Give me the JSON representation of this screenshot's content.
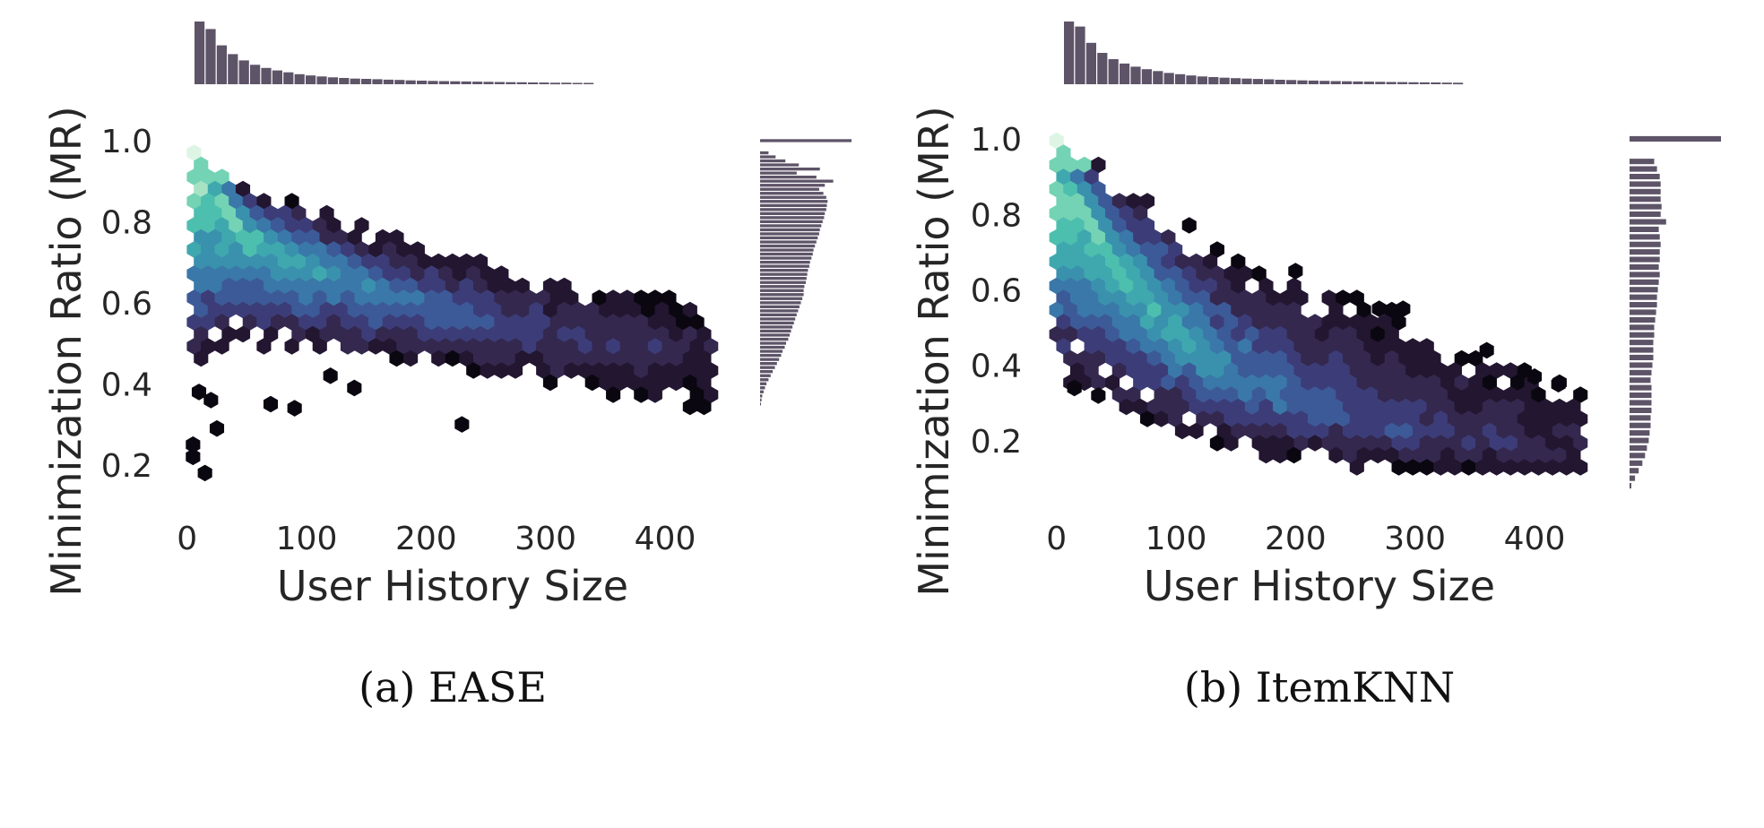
{
  "figure": {
    "captions": [
      "(a)  EASE",
      "(b)  ItemKNN"
    ]
  },
  "chart_data": [
    {
      "type": "heatmap",
      "subtype": "hexbin-jointplot",
      "caption": "(a)  EASE",
      "xlabel": "User History Size",
      "ylabel": "Minimization Ratio (MR)",
      "xlim": [
        -5,
        445
      ],
      "ylim": [
        0.12,
        1.06
      ],
      "xticks": [
        0,
        100,
        200,
        300,
        400
      ],
      "yticks": [
        0.2,
        0.4,
        0.6,
        0.8,
        1.0
      ],
      "xtick_labels": [
        "0",
        "100",
        "200",
        "300",
        "400"
      ],
      "ytick_labels": [
        "0.2",
        "0.4",
        "0.6",
        "0.8",
        "1.0"
      ],
      "grid": false,
      "trend": {
        "x": [
          5,
          20,
          50,
          100,
          150,
          200,
          250,
          300,
          350,
          400,
          440
        ],
        "y": [
          0.9,
          0.88,
          0.78,
          0.69,
          0.63,
          0.59,
          0.56,
          0.53,
          0.51,
          0.49,
          0.48
        ]
      },
      "spread_upper": {
        "x": [
          5,
          20,
          50,
          100,
          150,
          200,
          250,
          300,
          350,
          400,
          440
        ],
        "y": [
          1.0,
          0.96,
          0.88,
          0.84,
          0.79,
          0.74,
          0.7,
          0.66,
          0.62,
          0.63,
          0.56
        ]
      },
      "spread_lower": {
        "x": [
          5,
          20,
          50,
          100,
          150,
          200,
          250,
          300,
          350,
          400,
          440
        ],
        "y": [
          0.44,
          0.47,
          0.5,
          0.48,
          0.47,
          0.45,
          0.43,
          0.4,
          0.36,
          0.35,
          0.33
        ]
      },
      "outliers": [
        [
          5,
          0.25
        ],
        [
          5,
          0.22
        ],
        [
          15,
          0.18
        ],
        [
          25,
          0.29
        ],
        [
          20,
          0.36
        ],
        [
          10,
          0.38
        ],
        [
          70,
          0.35
        ],
        [
          90,
          0.34
        ],
        [
          120,
          0.42
        ],
        [
          140,
          0.39
        ],
        [
          230,
          0.3
        ]
      ],
      "top_histogram": [
        100,
        88,
        62,
        48,
        38,
        31,
        26,
        22,
        19,
        16,
        14,
        12.5,
        11,
        10,
        9,
        8.5,
        8,
        7.3,
        6.8,
        6.2,
        5.7,
        5.3,
        5,
        4.7,
        4.4,
        4.1,
        3.8,
        3.5,
        3.3,
        3.1,
        2.9,
        2.7,
        2.5,
        2.4,
        2.2,
        2.1
      ],
      "right_histogram": {
        "bins": [
          0.35,
          0.36,
          0.37,
          0.38,
          0.39,
          0.4,
          0.41,
          0.42,
          0.43,
          0.44,
          0.45,
          0.46,
          0.47,
          0.48,
          0.49,
          0.5,
          0.51,
          0.52,
          0.53,
          0.54,
          0.55,
          0.56,
          0.57,
          0.58,
          0.59,
          0.6,
          0.61,
          0.62,
          0.63,
          0.64,
          0.65,
          0.66,
          0.67,
          0.68,
          0.69,
          0.7,
          0.71,
          0.72,
          0.73,
          0.74,
          0.75,
          0.76,
          0.77,
          0.78,
          0.79,
          0.8,
          0.81,
          0.82,
          0.83,
          0.84,
          0.85,
          0.86,
          0.87,
          0.88,
          0.89,
          0.9,
          0.91,
          0.92,
          0.93,
          0.94,
          0.95,
          0.96,
          0.97,
          1.0
        ],
        "counts": [
          1,
          2,
          3,
          5,
          7,
          9,
          12,
          15,
          18,
          21,
          24,
          27,
          30,
          32,
          35,
          37,
          40,
          42,
          44,
          46,
          48,
          50,
          52,
          54,
          56,
          58,
          60,
          62,
          62,
          63,
          65,
          66,
          67,
          68,
          70,
          71,
          73,
          75,
          76,
          78,
          80,
          82,
          84,
          85,
          87,
          89,
          91,
          92,
          94,
          95,
          96,
          94,
          90,
          84,
          92,
          104,
          80,
          52,
          85,
          55,
          36,
          22,
          12,
          130
        ]
      },
      "colormap": [
        "#0a0710",
        "#231630",
        "#34284f",
        "#3c3d78",
        "#3d5a98",
        "#3a78a9",
        "#3a91ad",
        "#3fa8ae",
        "#4dbfae",
        "#74d3b4",
        "#a8e2c4",
        "#def5e5"
      ]
    },
    {
      "type": "heatmap",
      "subtype": "hexbin-jointplot",
      "caption": "(b)  ItemKNN",
      "xlabel": "User History Size",
      "ylabel": "Minimization Ratio (MR)",
      "xlim": [
        -5,
        445
      ],
      "ylim": [
        0.05,
        1.06
      ],
      "xticks": [
        0,
        100,
        200,
        300,
        400
      ],
      "yticks": [
        0.2,
        0.4,
        0.6,
        0.8,
        1.0
      ],
      "xtick_labels": [
        "0",
        "100",
        "200",
        "300",
        "400"
      ],
      "ytick_labels": [
        "0.2",
        "0.4",
        "0.6",
        "0.8",
        "1.0"
      ],
      "grid": false,
      "trend": {
        "x": [
          5,
          20,
          50,
          100,
          150,
          200,
          250,
          300,
          350,
          400,
          440
        ],
        "y": [
          0.85,
          0.82,
          0.68,
          0.48,
          0.37,
          0.3,
          0.25,
          0.22,
          0.19,
          0.17,
          0.16
        ]
      },
      "spread_upper": {
        "x": [
          5,
          20,
          50,
          100,
          150,
          200,
          250,
          300,
          350,
          400,
          440
        ],
        "y": [
          1.0,
          0.98,
          0.88,
          0.8,
          0.68,
          0.62,
          0.58,
          0.52,
          0.42,
          0.38,
          0.33
        ]
      },
      "spread_lower": {
        "x": [
          5,
          20,
          50,
          100,
          150,
          200,
          250,
          300,
          350,
          400,
          440
        ],
        "y": [
          0.37,
          0.35,
          0.3,
          0.22,
          0.18,
          0.15,
          0.13,
          0.12,
          0.11,
          0.1,
          0.1
        ]
      },
      "outliers": [
        [
          200,
          0.65
        ],
        [
          270,
          0.55
        ],
        [
          290,
          0.55
        ],
        [
          360,
          0.44
        ],
        [
          400,
          0.37
        ],
        [
          420,
          0.35
        ],
        [
          35,
          0.32
        ],
        [
          15,
          0.34
        ]
      ],
      "top_histogram": [
        100,
        92,
        66,
        50,
        40,
        33,
        28,
        24,
        21,
        18,
        16,
        14,
        12.5,
        11.5,
        10.5,
        9.7,
        9,
        8.4,
        7.8,
        7.2,
        6.7,
        6.2,
        5.8,
        5.4,
        5,
        4.7,
        4.4,
        4.1,
        3.8,
        3.6,
        3.4,
        3.2,
        3,
        2.8,
        2.6,
        2.5
      ],
      "right_histogram": {
        "bins": [
          0.08,
          0.1,
          0.12,
          0.14,
          0.16,
          0.18,
          0.2,
          0.22,
          0.24,
          0.26,
          0.28,
          0.3,
          0.32,
          0.34,
          0.36,
          0.38,
          0.4,
          0.42,
          0.44,
          0.46,
          0.48,
          0.5,
          0.52,
          0.54,
          0.56,
          0.58,
          0.6,
          0.62,
          0.64,
          0.66,
          0.68,
          0.7,
          0.72,
          0.74,
          0.76,
          0.78,
          0.8,
          0.82,
          0.84,
          0.86,
          0.88,
          0.9,
          0.92,
          0.94,
          1.0
        ],
        "counts": [
          2,
          6,
          10,
          14,
          17,
          19,
          21,
          22,
          23,
          23,
          24,
          24,
          24,
          24,
          23,
          24,
          25,
          26,
          26,
          26,
          27,
          27,
          28,
          29,
          30,
          30,
          31,
          32,
          33,
          32,
          33,
          33,
          34,
          33,
          32,
          40,
          34,
          35,
          34,
          34,
          34,
          33,
          30,
          27,
          100
        ]
      },
      "colormap": [
        "#0a0710",
        "#231630",
        "#34284f",
        "#3c3d78",
        "#3d5a98",
        "#3a78a9",
        "#3a91ad",
        "#3fa8ae",
        "#4dbfae",
        "#74d3b4",
        "#a8e2c4",
        "#def5e5"
      ]
    }
  ]
}
